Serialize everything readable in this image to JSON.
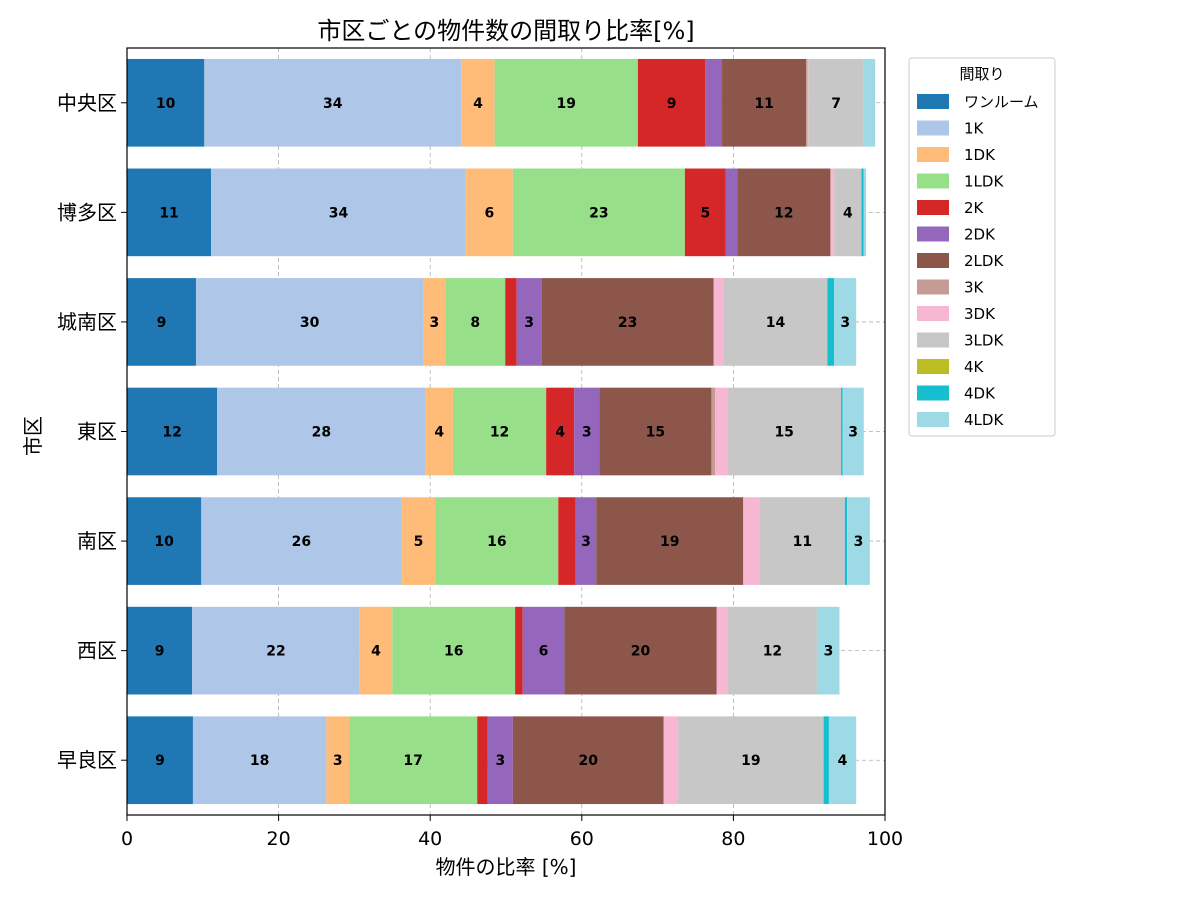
{
  "chart_data": {
    "type": "bar",
    "orientation": "horizontal",
    "stacked": true,
    "title": "市区ごとの物件数の間取り比率[%]",
    "xlabel": "物件の比率 [%]",
    "ylabel": "市区",
    "xlim": [
      0,
      100
    ],
    "xticks": [
      "0",
      "20",
      "40",
      "60",
      "80",
      "100"
    ],
    "grid": true,
    "legend_title": "間取り",
    "legend_position": "right-outside-top",
    "categories": [
      "早良区",
      "西区",
      "南区",
      "東区",
      "城南区",
      "博多区",
      "中央区"
    ],
    "series": [
      {
        "name": "ワンルーム",
        "color": "#1f77b4",
        "values": [
          8.7,
          8.6,
          9.8,
          11.9,
          9.1,
          11.1,
          10.2
        ]
      },
      {
        "name": "1K",
        "color": "#aec7e8",
        "values": [
          17.6,
          22.1,
          26.4,
          27.5,
          30.0,
          33.6,
          33.9
        ]
      },
      {
        "name": "1DK",
        "color": "#ffbb78",
        "values": [
          3.0,
          4.3,
          4.5,
          3.6,
          2.9,
          6.2,
          4.4
        ]
      },
      {
        "name": "1LDK",
        "color": "#98df8a",
        "values": [
          16.9,
          16.2,
          16.2,
          12.3,
          7.9,
          22.7,
          18.9
        ]
      },
      {
        "name": "2K",
        "color": "#d62728",
        "values": [
          1.4,
          1.0,
          2.3,
          3.7,
          1.5,
          5.4,
          8.9
        ]
      },
      {
        "name": "2DK",
        "color": "#9467bd",
        "values": [
          3.3,
          5.5,
          2.7,
          3.3,
          3.3,
          1.5,
          2.2
        ]
      },
      {
        "name": "2LDK",
        "color": "#8c564b",
        "values": [
          19.9,
          20.1,
          19.4,
          14.8,
          22.7,
          12.3,
          11.1
        ]
      },
      {
        "name": "3K",
        "color": "#c49c94",
        "values": [
          0.0,
          0.0,
          0.0,
          0.5,
          0.0,
          0.0,
          0.2
        ]
      },
      {
        "name": "3DK",
        "color": "#f7b6d2",
        "values": [
          1.9,
          1.4,
          2.2,
          1.6,
          1.3,
          0.5,
          0.1
        ]
      },
      {
        "name": "3LDK",
        "color": "#c7c7c7",
        "values": [
          19.2,
          11.9,
          11.2,
          15.0,
          13.7,
          3.6,
          7.3
        ]
      },
      {
        "name": "4K",
        "color": "#bcbd22",
        "values": [
          0.0,
          0.0,
          0.0,
          0.0,
          0.0,
          0.0,
          0.0
        ]
      },
      {
        "name": "4DK",
        "color": "#17becf",
        "values": [
          0.7,
          0.0,
          0.3,
          0.2,
          0.9,
          0.3,
          0.0
        ]
      },
      {
        "name": "4LDK",
        "color": "#9edae5",
        "values": [
          3.6,
          2.9,
          3.0,
          2.8,
          2.9,
          0.3,
          1.5
        ]
      }
    ]
  }
}
